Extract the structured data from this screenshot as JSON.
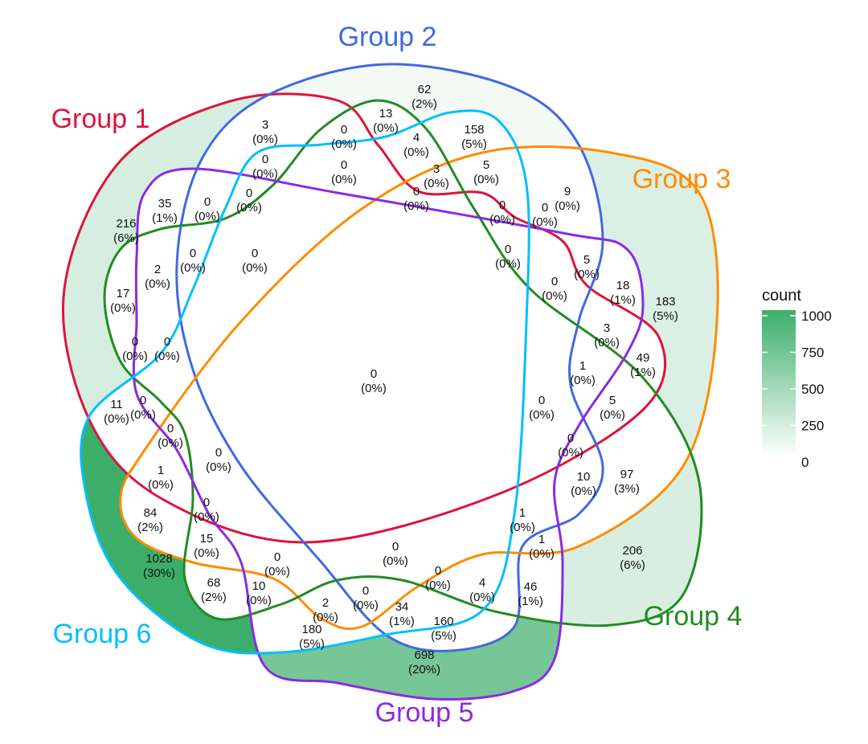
{
  "groups": [
    {
      "name": "Group 1",
      "color": "#DC143C",
      "only_count": 216
    },
    {
      "name": "Group 2",
      "color": "#4169E1",
      "only_count": 62
    },
    {
      "name": "Group 3",
      "color": "#FF8C00",
      "only_count": 183
    },
    {
      "name": "Group 4",
      "color": "#228B22",
      "only_count": 206
    },
    {
      "name": "Group 5",
      "color": "#8A2BE2",
      "only_count": 698
    },
    {
      "name": "Group 6",
      "color": "#00BFFF",
      "only_count": 1028
    }
  ],
  "legend": {
    "title": "count",
    "ticks": [
      "1000",
      "750",
      "500",
      "250",
      "0"
    ],
    "low_color": "#FFFFFF",
    "high_color": "#3CAE69",
    "range": [
      0,
      1000
    ]
  },
  "regions": [
    {
      "count": "62",
      "pct": "(2%)"
    },
    {
      "count": "13",
      "pct": "(0%)"
    },
    {
      "count": "158",
      "pct": "(5%)"
    },
    {
      "count": "3",
      "pct": "(0%)"
    },
    {
      "count": "0",
      "pct": "(0%)"
    },
    {
      "count": "4",
      "pct": "(0%)"
    },
    {
      "count": "0",
      "pct": "(0%)"
    },
    {
      "count": "0",
      "pct": "(0%)"
    },
    {
      "count": "5",
      "pct": "(0%)"
    },
    {
      "count": "3",
      "pct": "(0%)"
    },
    {
      "count": "0",
      "pct": "(0%)"
    },
    {
      "count": "0",
      "pct": "(0%)"
    },
    {
      "count": "0",
      "pct": "(0%)"
    },
    {
      "count": "9",
      "pct": "(0%)"
    },
    {
      "count": "35",
      "pct": "(1%)"
    },
    {
      "count": "0",
      "pct": "(0%)"
    },
    {
      "count": "0",
      "pct": "(0%)"
    },
    {
      "count": "216",
      "pct": "(6%)"
    },
    {
      "count": "0",
      "pct": "(0%)"
    },
    {
      "count": "0",
      "pct": "(0%)"
    },
    {
      "count": "2",
      "pct": "(0%)"
    },
    {
      "count": "0",
      "pct": "(0%)"
    },
    {
      "count": "5",
      "pct": "(0%)"
    },
    {
      "count": "0",
      "pct": "(0%)"
    },
    {
      "count": "18",
      "pct": "(1%)"
    },
    {
      "count": "183",
      "pct": "(5%)"
    },
    {
      "count": "17",
      "pct": "(0%)"
    },
    {
      "count": "3",
      "pct": "(0%)"
    },
    {
      "count": "0",
      "pct": "(0%)"
    },
    {
      "count": "0",
      "pct": "(0%)"
    },
    {
      "count": "49",
      "pct": "(1%)"
    },
    {
      "count": "1",
      "pct": "(0%)"
    },
    {
      "count": "0",
      "pct": "(0%)"
    },
    {
      "count": "11",
      "pct": "(0%)"
    },
    {
      "count": "0",
      "pct": "(0%)"
    },
    {
      "count": "5",
      "pct": "(0%)"
    },
    {
      "count": "0",
      "pct": "(0%)"
    },
    {
      "count": "0",
      "pct": "(0%)"
    },
    {
      "count": "0",
      "pct": "(0%)"
    },
    {
      "count": "0",
      "pct": "(0%)"
    },
    {
      "count": "1",
      "pct": "(0%)"
    },
    {
      "count": "10",
      "pct": "(0%)"
    },
    {
      "count": "97",
      "pct": "(3%)"
    },
    {
      "count": "0",
      "pct": "(0%)"
    },
    {
      "count": "84",
      "pct": "(2%)"
    },
    {
      "count": "1",
      "pct": "(0%)"
    },
    {
      "count": "1",
      "pct": "(0%)"
    },
    {
      "count": "15",
      "pct": "(0%)"
    },
    {
      "count": "0",
      "pct": "(0%)"
    },
    {
      "count": "206",
      "pct": "(6%)"
    },
    {
      "count": "1028",
      "pct": "(30%)"
    },
    {
      "count": "0",
      "pct": "(0%)"
    },
    {
      "count": "68",
      "pct": "(2%)"
    },
    {
      "count": "10",
      "pct": "(0%)"
    },
    {
      "count": "0",
      "pct": "(0%)"
    },
    {
      "count": "4",
      "pct": "(0%)"
    },
    {
      "count": "46",
      "pct": "(1%)"
    },
    {
      "count": "0",
      "pct": "(0%)"
    },
    {
      "count": "2",
      "pct": "(0%)"
    },
    {
      "count": "34",
      "pct": "(1%)"
    },
    {
      "count": "160",
      "pct": "(5%)"
    },
    {
      "count": "180",
      "pct": "(5%)"
    },
    {
      "count": "698",
      "pct": "(20%)"
    }
  ]
}
